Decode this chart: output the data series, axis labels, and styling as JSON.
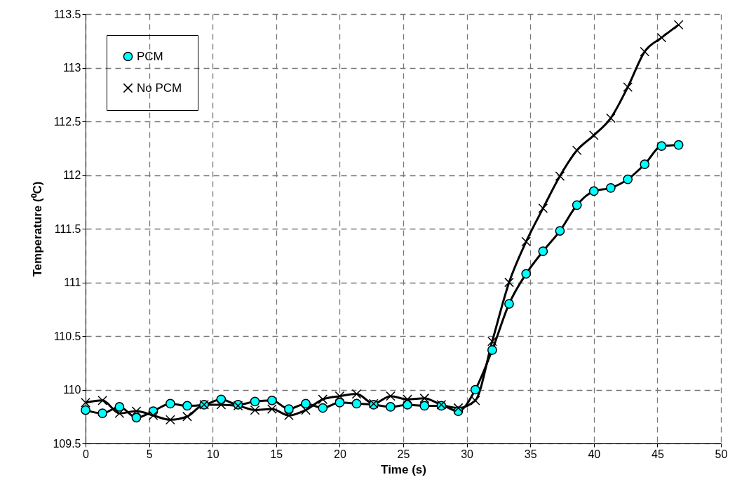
{
  "chart_data": {
    "type": "line",
    "xlabel": "Time (s)",
    "ylabel": "Temperature (⁰C)",
    "xlim": [
      0,
      50
    ],
    "xticks": [
      0,
      5,
      10,
      15,
      20,
      25,
      30,
      35,
      40,
      45,
      50
    ],
    "ylim": [
      109.5,
      113.5
    ],
    "yticks": [
      109.5,
      110,
      110.5,
      111,
      111.5,
      112,
      112.5,
      113,
      113.5
    ],
    "grid": true,
    "legend": "top left",
    "x": [
      0,
      1.33,
      2.67,
      4,
      5.33,
      6.67,
      8,
      9.33,
      10.67,
      12,
      13.33,
      14.67,
      16,
      17.33,
      18.67,
      20,
      21.33,
      22.67,
      24,
      25.33,
      26.67,
      28,
      29.33,
      30.67,
      32,
      33.33,
      34.67,
      36,
      37.33,
      38.67,
      40,
      41.33,
      42.67,
      44,
      45.33,
      46.67
    ],
    "series": [
      {
        "name": "PCM",
        "color": "#00ffff",
        "marker": "circle",
        "values": [
          109.81,
          109.78,
          109.84,
          109.74,
          109.8,
          109.87,
          109.85,
          109.86,
          109.91,
          109.86,
          109.89,
          109.9,
          109.82,
          109.87,
          109.83,
          109.88,
          109.87,
          109.86,
          109.84,
          109.86,
          109.85,
          109.85,
          109.8,
          110.0,
          110.37,
          110.8,
          111.08,
          111.29,
          111.48,
          111.72,
          111.85,
          111.88,
          111.96,
          112.1,
          112.27,
          112.28
        ]
      },
      {
        "name": "No PCM",
        "color": "#000000",
        "marker": "cross",
        "values": [
          109.88,
          109.9,
          109.78,
          109.8,
          109.76,
          109.72,
          109.75,
          109.86,
          109.86,
          109.85,
          109.81,
          109.82,
          109.76,
          109.81,
          109.91,
          109.94,
          109.96,
          109.87,
          109.94,
          109.91,
          109.92,
          109.86,
          109.83,
          109.9,
          110.45,
          111.0,
          111.38,
          111.69,
          111.99,
          112.23,
          112.37,
          112.53,
          112.82,
          113.15,
          113.28,
          113.4
        ]
      }
    ]
  }
}
